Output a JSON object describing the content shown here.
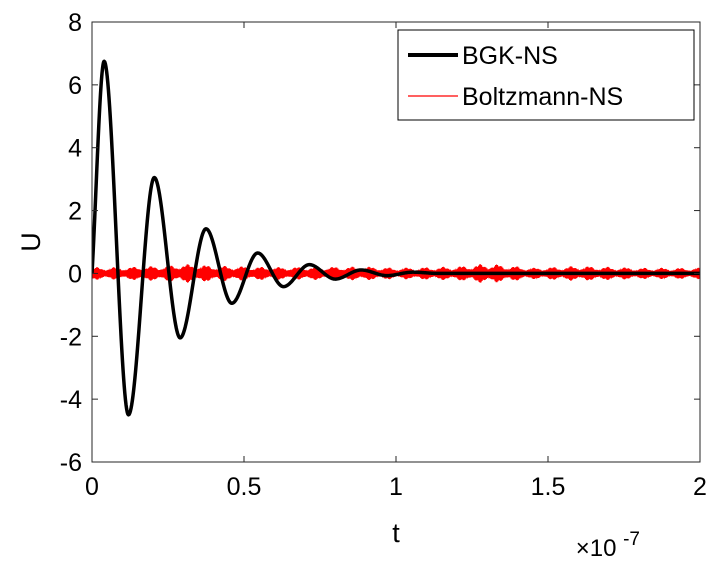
{
  "chart_data": {
    "type": "line",
    "title": "",
    "xlabel": "t",
    "ylabel": "U",
    "xlim": [
      0,
      2e-07
    ],
    "ylim": [
      -6,
      8
    ],
    "x_ticks": [
      0,
      0.5,
      1,
      1.5,
      2
    ],
    "x_tick_labels": [
      "0",
      "0.5",
      "1",
      "1.5",
      "2"
    ],
    "x_multiplier": {
      "prefix": "×10",
      "exponent": "-7"
    },
    "y_ticks": [
      -6,
      -4,
      -2,
      0,
      2,
      4,
      6,
      8
    ],
    "y_tick_labels": [
      "-6",
      "-4",
      "-2",
      "0",
      "2",
      "4",
      "6",
      "8"
    ],
    "grid": false,
    "legend_position": "top-right",
    "series": [
      {
        "name": "BGK-NS",
        "color": "#000000",
        "style": "thick",
        "x": [
          0,
          4e-09,
          1.2e-08,
          2.05e-08,
          2.9e-08,
          3.75e-08,
          4.6e-08,
          5.45e-08,
          6.3e-08,
          7.15e-08,
          8e-08,
          8.85e-08,
          9.7e-08,
          1.055e-07,
          1.14e-07,
          2e-07
        ],
        "y": [
          0,
          6.75,
          -4.5,
          3.05,
          -2.05,
          1.42,
          -0.95,
          0.65,
          -0.42,
          0.28,
          -0.18,
          0.11,
          -0.07,
          0.04,
          0,
          0
        ]
      },
      {
        "name": "Boltzmann-NS",
        "color": "#ff0000",
        "style": "thin-oscillating",
        "envelope_t": [
          0,
          1e-08,
          2.5e-08,
          3e-08,
          4e-08,
          6e-08,
          9e-08,
          1e-07,
          1.2e-07,
          1.3e-07,
          1.45e-07,
          1.6e-07,
          1.8e-07,
          2e-07
        ],
        "envelope_amp": [
          0.2,
          0.2,
          0.25,
          0.3,
          0.25,
          0.2,
          0.22,
          0.18,
          0.22,
          0.32,
          0.18,
          0.24,
          0.18,
          0.18
        ]
      }
    ]
  }
}
